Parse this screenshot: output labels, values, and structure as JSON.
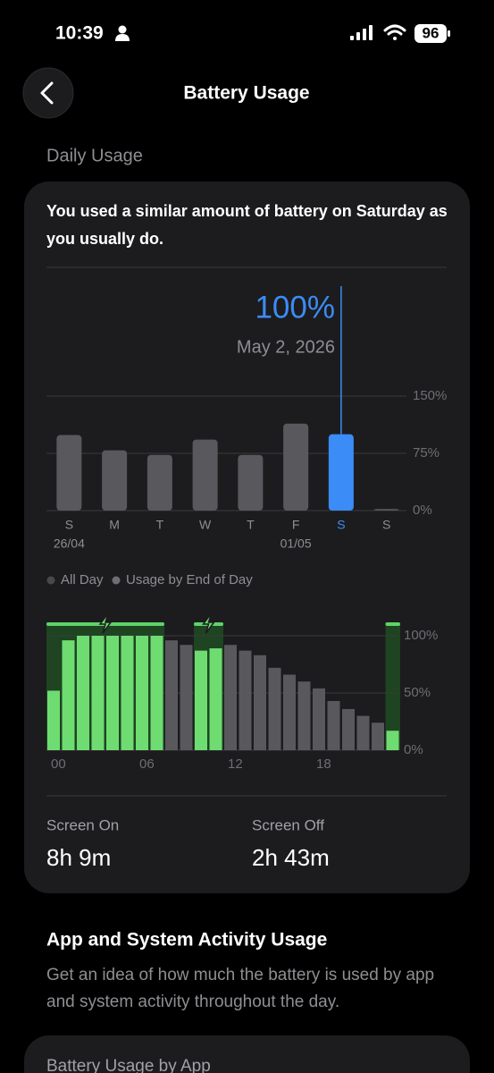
{
  "status_bar": {
    "time": "10:39",
    "battery_level": "96"
  },
  "header": {
    "title": "Battery Usage"
  },
  "daily_usage": {
    "section_title": "Daily Usage",
    "summary": "You used a similar amount of battery on Saturday as you usually do.",
    "selected_value": "100%",
    "selected_date": "May 2, 2026"
  },
  "chart_data": [
    {
      "type": "bar",
      "categories": [
        "S",
        "M",
        "T",
        "W",
        "T",
        "F",
        "S",
        "S"
      ],
      "date_labels": [
        "26/04",
        null,
        null,
        null,
        null,
        "01/05",
        null,
        null
      ],
      "values": [
        99,
        79,
        73,
        93,
        73,
        114,
        100,
        2
      ],
      "color": "#59595d",
      "highlight_index": 6,
      "highlight_color": "#3b8cf6",
      "ylim": [
        0,
        150
      ],
      "yticks": [
        {
          "value": 0,
          "label": "0%"
        },
        {
          "value": 75,
          "label": "75%"
        },
        {
          "value": 150,
          "label": "150%"
        }
      ],
      "grid": true,
      "legend": [
        "All Day",
        "Usage by End of Day"
      ]
    },
    {
      "type": "bar",
      "x": [
        0,
        1,
        2,
        3,
        4,
        5,
        6,
        7,
        8,
        9,
        10,
        11,
        12,
        13,
        14,
        15,
        16,
        17,
        18,
        19,
        20,
        21,
        22,
        23
      ],
      "values": [
        52,
        96,
        100,
        100,
        100,
        100,
        100,
        100,
        96,
        92,
        87,
        89,
        92,
        87,
        83,
        72,
        66,
        60,
        54,
        43,
        36,
        30,
        24,
        17
      ],
      "colors": [
        "#6fdc72",
        "#6fdc72",
        "#6fdc72",
        "#6fdc72",
        "#6fdc72",
        "#6fdc72",
        "#6fdc72",
        "#6fdc72",
        "#59595d",
        "#59595d",
        "#6fdc72",
        "#6fdc72",
        "#59595d",
        "#59595d",
        "#59595d",
        "#59595d",
        "#59595d",
        "#59595d",
        "#59595d",
        "#59595d",
        "#59595d",
        "#59595d",
        "#59595d",
        "#6fdc72"
      ],
      "charging_periods": [
        [
          0,
          8
        ],
        [
          10,
          12
        ],
        [
          23,
          24
        ]
      ],
      "charging_color": "#1e4421",
      "charging_edge_color": "#5fd36a",
      "xlim": [
        0,
        24
      ],
      "xticks": [
        {
          "value": 0,
          "label": "00"
        },
        {
          "value": 6,
          "label": "06"
        },
        12,
        18
      ],
      "ylim": [
        0,
        100
      ],
      "yticks": [
        {
          "value": 0,
          "label": "0%"
        },
        {
          "value": 50,
          "label": "50%"
        },
        {
          "value": 100,
          "label": "100%"
        }
      ],
      "grid": true
    }
  ],
  "screen_time": {
    "on_label": "Screen On",
    "on_value": "8h 9m",
    "off_label": "Screen Off",
    "off_value": "2h 43m"
  },
  "activity": {
    "title": "App and System Activity Usage",
    "description": "Get an idea of how much the battery is used by app and system activity throughout the day.",
    "card_title": "Battery Usage by App"
  }
}
